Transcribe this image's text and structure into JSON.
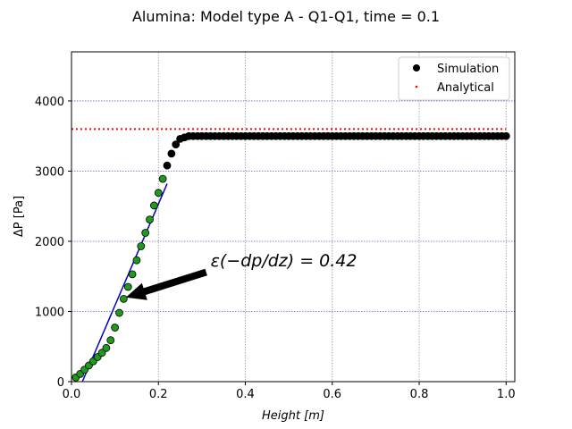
{
  "chart_data": {
    "type": "scatter",
    "title": "Alumina: Model type A - Q1-Q1, time = 0.1",
    "xlabel": "Height  [m]",
    "ylabel": "ΔP [Pa]",
    "xlim": [
      0.0,
      1.02
    ],
    "ylim": [
      0,
      4700
    ],
    "x_ticks": [
      0.0,
      0.2,
      0.4,
      0.6,
      0.8,
      1.0
    ],
    "x_tick_labels": [
      "0.0",
      "0.2",
      "0.4",
      "0.6",
      "0.8",
      "1.0"
    ],
    "y_ticks": [
      0,
      1000,
      2000,
      3000,
      4000
    ],
    "y_tick_labels": [
      "0",
      "1000",
      "2000",
      "3000",
      "4000"
    ],
    "grid": true,
    "legend_position": "top-right",
    "legend": [
      {
        "label": "Simulation",
        "marker": "circle",
        "color": "#000000"
      },
      {
        "label": "Analytical",
        "marker": "dotted-line",
        "color": "#ff0000"
      }
    ],
    "series": [
      {
        "name": "Simulation",
        "color": "#000000",
        "highlight_color": "#1f9a1f",
        "highlight_until_x": 0.21,
        "x": [
          0.01,
          0.02,
          0.03,
          0.04,
          0.05,
          0.06,
          0.07,
          0.08,
          0.09,
          0.1,
          0.11,
          0.12,
          0.13,
          0.14,
          0.15,
          0.16,
          0.17,
          0.18,
          0.19,
          0.2,
          0.21,
          0.22,
          0.23,
          0.24,
          0.25,
          0.26,
          0.27,
          0.28,
          0.29,
          0.3,
          0.31,
          0.32,
          0.33,
          0.34,
          0.35,
          0.36,
          0.37,
          0.38,
          0.39,
          0.4,
          0.41,
          0.42,
          0.43,
          0.44,
          0.45,
          0.46,
          0.47,
          0.48,
          0.49,
          0.5,
          0.51,
          0.52,
          0.53,
          0.54,
          0.55,
          0.56,
          0.57,
          0.58,
          0.59,
          0.6,
          0.61,
          0.62,
          0.63,
          0.64,
          0.65,
          0.66,
          0.67,
          0.68,
          0.69,
          0.7,
          0.71,
          0.72,
          0.73,
          0.74,
          0.75,
          0.76,
          0.77,
          0.78,
          0.79,
          0.8,
          0.81,
          0.82,
          0.83,
          0.84,
          0.85,
          0.86,
          0.87,
          0.88,
          0.89,
          0.9,
          0.91,
          0.92,
          0.93,
          0.94,
          0.95,
          0.96,
          0.97,
          0.98,
          0.99,
          1.0
        ],
        "y": [
          60,
          110,
          170,
          230,
          290,
          350,
          410,
          480,
          590,
          770,
          980,
          1180,
          1350,
          1530,
          1730,
          1930,
          2120,
          2310,
          2510,
          2690,
          2890,
          3080,
          3250,
          3380,
          3460,
          3480,
          3500,
          3500,
          3500,
          3500,
          3500,
          3500,
          3500,
          3500,
          3500,
          3500,
          3500,
          3500,
          3500,
          3500,
          3500,
          3500,
          3500,
          3500,
          3500,
          3500,
          3500,
          3500,
          3500,
          3500,
          3500,
          3500,
          3500,
          3500,
          3500,
          3500,
          3500,
          3500,
          3500,
          3500,
          3500,
          3500,
          3500,
          3500,
          3500,
          3500,
          3500,
          3500,
          3500,
          3500,
          3500,
          3500,
          3500,
          3500,
          3500,
          3500,
          3500,
          3500,
          3500,
          3500,
          3500,
          3500,
          3500,
          3500,
          3500,
          3500,
          3500,
          3500,
          3500,
          3500,
          3500,
          3500,
          3500,
          3500,
          3500,
          3500,
          3500,
          3500,
          3500,
          3500
        ]
      },
      {
        "name": "Analytical",
        "color": "#ff0000",
        "style": "dotted",
        "x": [
          0.0,
          1.0
        ],
        "y": [
          3600,
          3600
        ]
      }
    ],
    "fit_line": {
      "color": "#0000cc",
      "x": [
        0.025,
        0.22
      ],
      "y": [
        0,
        2820
      ]
    },
    "annotation": {
      "text": "ε(−dp/dz) = 0.42",
      "arrow_color": "#000000",
      "arrow_tail": [
        0.31,
        1560
      ],
      "arrow_head": [
        0.125,
        1200
      ],
      "text_anchor": [
        0.32,
        1640
      ]
    }
  }
}
